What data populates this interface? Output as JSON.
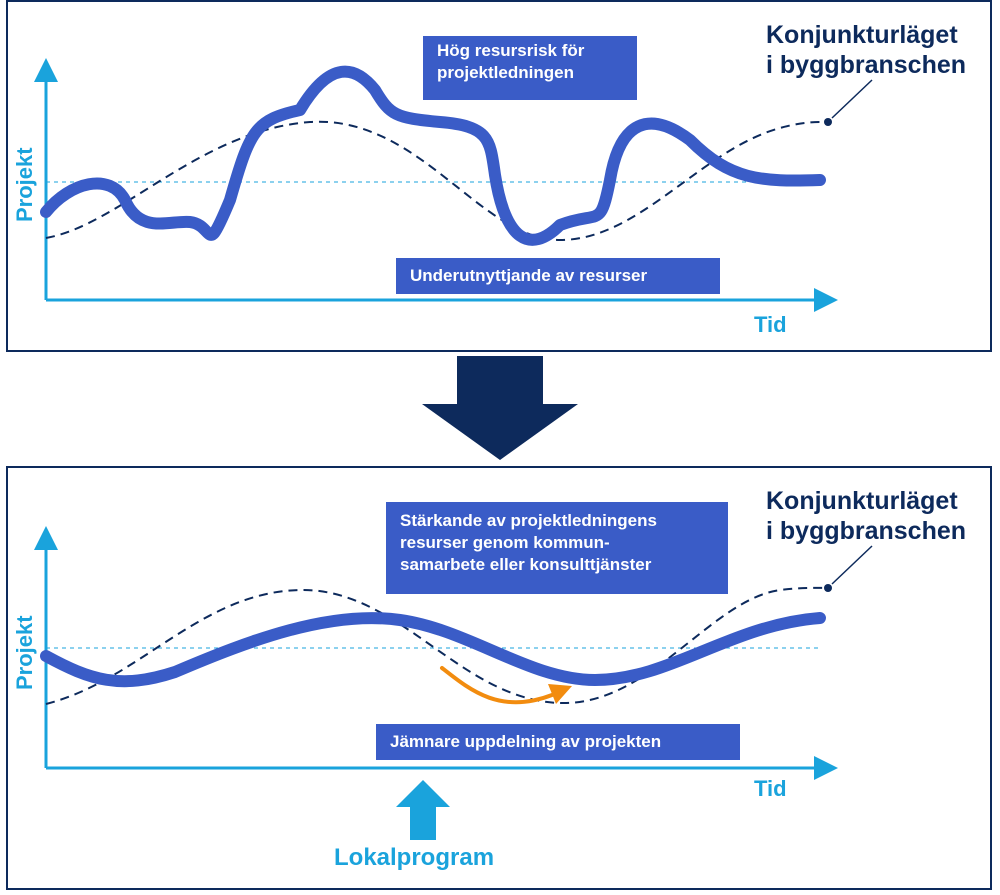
{
  "top_panel": {
    "y_axis_label": "Projekt",
    "x_axis_label": "Tid",
    "series_label": "Konjunkturläget\ni byggbranschen",
    "callout_high": "Hög resursrisk för\nprojektledningen",
    "callout_low": "Underutnyttjande av resurser"
  },
  "bottom_panel": {
    "y_axis_label": "Projekt",
    "x_axis_label": "Tid",
    "series_label": "Konjunkturläget\ni byggbranschen",
    "callout_high": "Stärkande av projektledningens\nresurser genom kommun-\nsamarbete eller konsulttjänster",
    "callout_low": "Jämnare uppdelning av projekten",
    "program_label": "Lokalprogram"
  },
  "colors": {
    "navy": "#0d2a5c",
    "accent_blue": "#1aa3dc",
    "project_line": "#3a5cc7",
    "trend_arrow": "#f28c0f"
  }
}
